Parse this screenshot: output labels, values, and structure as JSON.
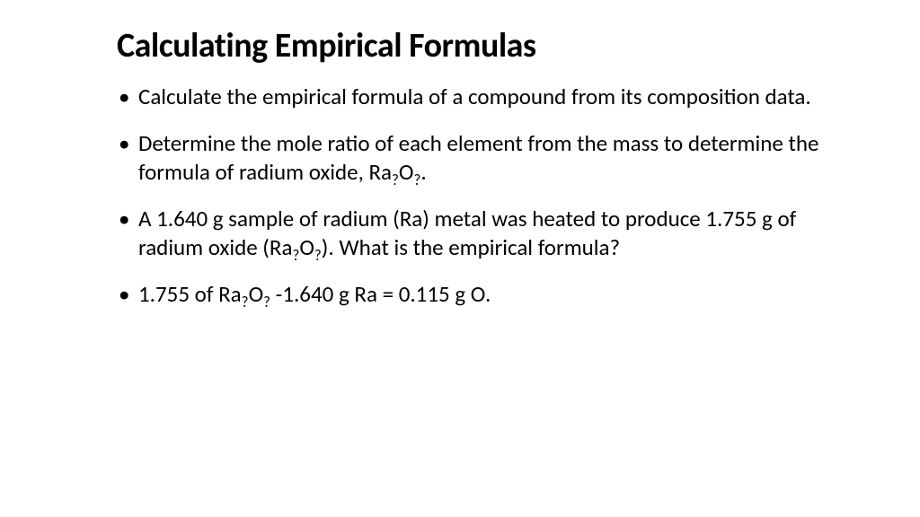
{
  "title": "Calculating Empirical Formulas",
  "bullets": [
    {
      "parts": [
        {
          "t": "Calculate the empirical formula of a compound from its composition data."
        }
      ]
    },
    {
      "parts": [
        {
          "t": "Determine the mole ratio of each element from the mass to determine the formula of radium oxide, Ra"
        },
        {
          "t": "?",
          "sub": true
        },
        {
          "t": "O"
        },
        {
          "t": "?",
          "sub": true
        },
        {
          "t": "."
        }
      ]
    },
    {
      "parts": [
        {
          "t": "A 1.640 g sample of radium (Ra) metal was heated to produce 1.755 g of radium oxide (Ra"
        },
        {
          "t": "?",
          "sub": true
        },
        {
          "t": "O"
        },
        {
          "t": "?",
          "sub": true
        },
        {
          "t": ").  What is the empirical formula?"
        }
      ]
    },
    {
      "parts": [
        {
          "t": "1.755 of Ra"
        },
        {
          "t": "?",
          "sub": true
        },
        {
          "t": "O"
        },
        {
          "t": "?",
          "sub": true
        },
        {
          "t": " -1.640 g Ra = 0.115 g O."
        }
      ]
    }
  ],
  "colors": {
    "background": "#ffffff",
    "text": "#000000"
  },
  "typography": {
    "title_fontsize_pt": 30,
    "body_fontsize_pt": 20,
    "title_weight": "bold",
    "body_weight": "normal",
    "font_family": "Calibri"
  }
}
